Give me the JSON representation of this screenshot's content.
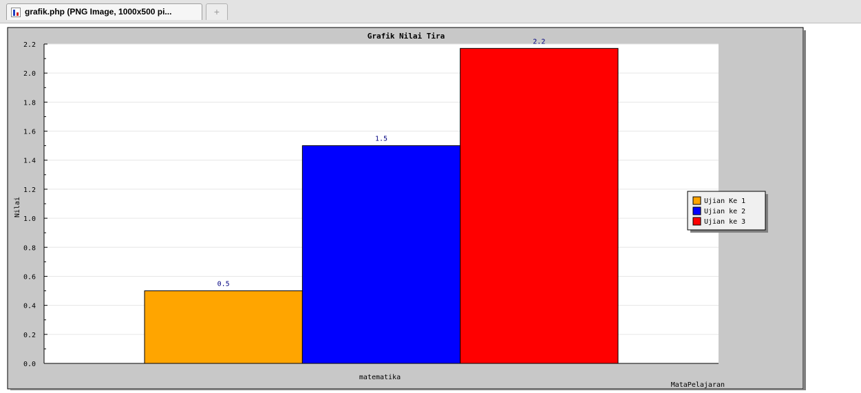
{
  "browser": {
    "tab_title": "grafik.php (PNG Image, 1000x500 pi...",
    "new_tab_label": "+"
  },
  "colors": {
    "panel_bg": "#c8c8c8",
    "plot_bg": "#ffffff",
    "value_label": "#000080",
    "series": [
      "#ffa500",
      "#0000ff",
      "#ff0000"
    ]
  },
  "chart_data": {
    "type": "bar",
    "title": "Grafik Nilai Tira",
    "xlabel": "MataPelajaran",
    "ylabel": "Nilai",
    "categories": [
      "matematika"
    ],
    "series": [
      {
        "name": "Ujian Ke 1",
        "values": [
          0.5
        ],
        "label": "0.5"
      },
      {
        "name": "Ujian ke 2",
        "values": [
          1.5
        ],
        "label": "1.5"
      },
      {
        "name": "Ujian ke 3",
        "values": [
          2.17
        ],
        "label": "2.2"
      }
    ],
    "ylim": [
      0,
      2.2
    ],
    "yticks": [
      "0.0",
      "0.2",
      "0.4",
      "0.6",
      "0.8",
      "1.0",
      "1.2",
      "1.4",
      "1.6",
      "1.8",
      "2.0",
      "2.2"
    ],
    "grid": true,
    "legend": "right"
  }
}
